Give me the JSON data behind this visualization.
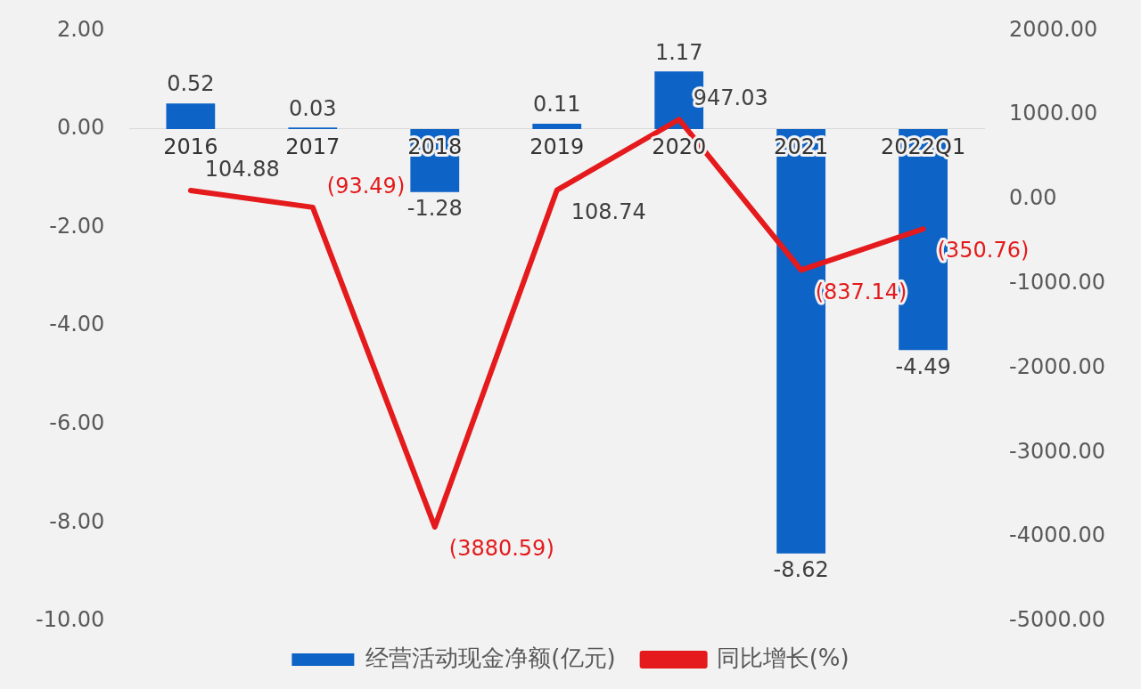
{
  "chart_data": {
    "type": "bar",
    "categories": [
      "2016",
      "2017",
      "2018",
      "2019",
      "2020",
      "2021",
      "2022Q1"
    ],
    "series": [
      {
        "name": "经营活动现金净额(亿元)",
        "type": "bar",
        "color": "#0e63c6",
        "values": [
          0.52,
          0.03,
          -1.28,
          0.11,
          1.17,
          -8.62,
          -4.49
        ],
        "value_labels": [
          "0.52",
          "0.03",
          "-1.28",
          "0.11",
          "1.17",
          "-8.62",
          "-4.49"
        ]
      },
      {
        "name": "同比增长(%)",
        "type": "line",
        "axis": "y2",
        "color": "#e41a1c",
        "values": [
          104.88,
          -93.49,
          -3880.59,
          108.74,
          947.03,
          -837.14,
          -350.76
        ],
        "value_labels": [
          "104.88",
          "(93.49)",
          "(3880.59)",
          "108.74",
          "947.03",
          "(837.14)",
          "(350.76)"
        ]
      }
    ],
    "ylim": [
      -10,
      2
    ],
    "yticks": [
      {
        "value": -10,
        "label": "-10.00"
      },
      {
        "value": -8,
        "label": "-8.00"
      },
      {
        "value": -6,
        "label": "-6.00"
      },
      {
        "value": -4,
        "label": "-4.00"
      },
      {
        "value": -2,
        "label": "-2.00"
      },
      {
        "value": 0,
        "label": "0.00"
      },
      {
        "value": 2,
        "label": "2.00"
      }
    ],
    "y2lim": [
      -5000,
      2000
    ],
    "y2ticks": [
      {
        "value": -5000,
        "label": "-5000.00"
      },
      {
        "value": -4000,
        "label": "-4000.00"
      },
      {
        "value": -3000,
        "label": "-3000.00"
      },
      {
        "value": -2000,
        "label": "-2000.00"
      },
      {
        "value": -1000,
        "label": "-1000.00"
      },
      {
        "value": 0,
        "label": "0.00"
      },
      {
        "value": 1000,
        "label": "1000.00"
      },
      {
        "value": 2000,
        "label": "2000.00"
      }
    ],
    "grid": false,
    "legend": "bottom"
  }
}
